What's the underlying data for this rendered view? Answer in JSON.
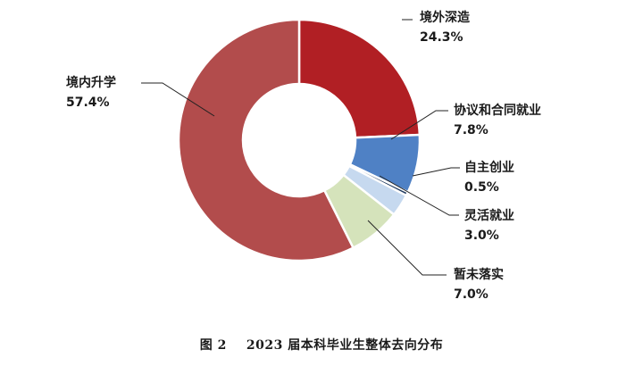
{
  "chart_data": {
    "type": "pie",
    "donut": true,
    "title": "",
    "slices": [
      {
        "name": "境外深造",
        "value": 24.3,
        "label": "24.3%",
        "color": "#b11f24"
      },
      {
        "name": "协议和合同就业",
        "value": 7.8,
        "label": "7.8%",
        "color": "#4f81c5"
      },
      {
        "name": "自主创业",
        "value": 0.5,
        "label": "0.5%",
        "color": "#1f3a5f"
      },
      {
        "name": "灵活就业",
        "value": 3.0,
        "label": "3.0%",
        "color": "#c6d9ef"
      },
      {
        "name": "暂未落实",
        "value": 7.0,
        "label": "7.0%",
        "color": "#d5e3bb"
      },
      {
        "name": "境内升学",
        "value": 57.4,
        "label": "57.4%",
        "color": "#b24c4c"
      }
    ],
    "start_angle_deg": 0,
    "direction": "clockwise"
  },
  "caption": {
    "figure_number": "图 2",
    "text": "2023 届本科毕业生整体去向分布"
  }
}
